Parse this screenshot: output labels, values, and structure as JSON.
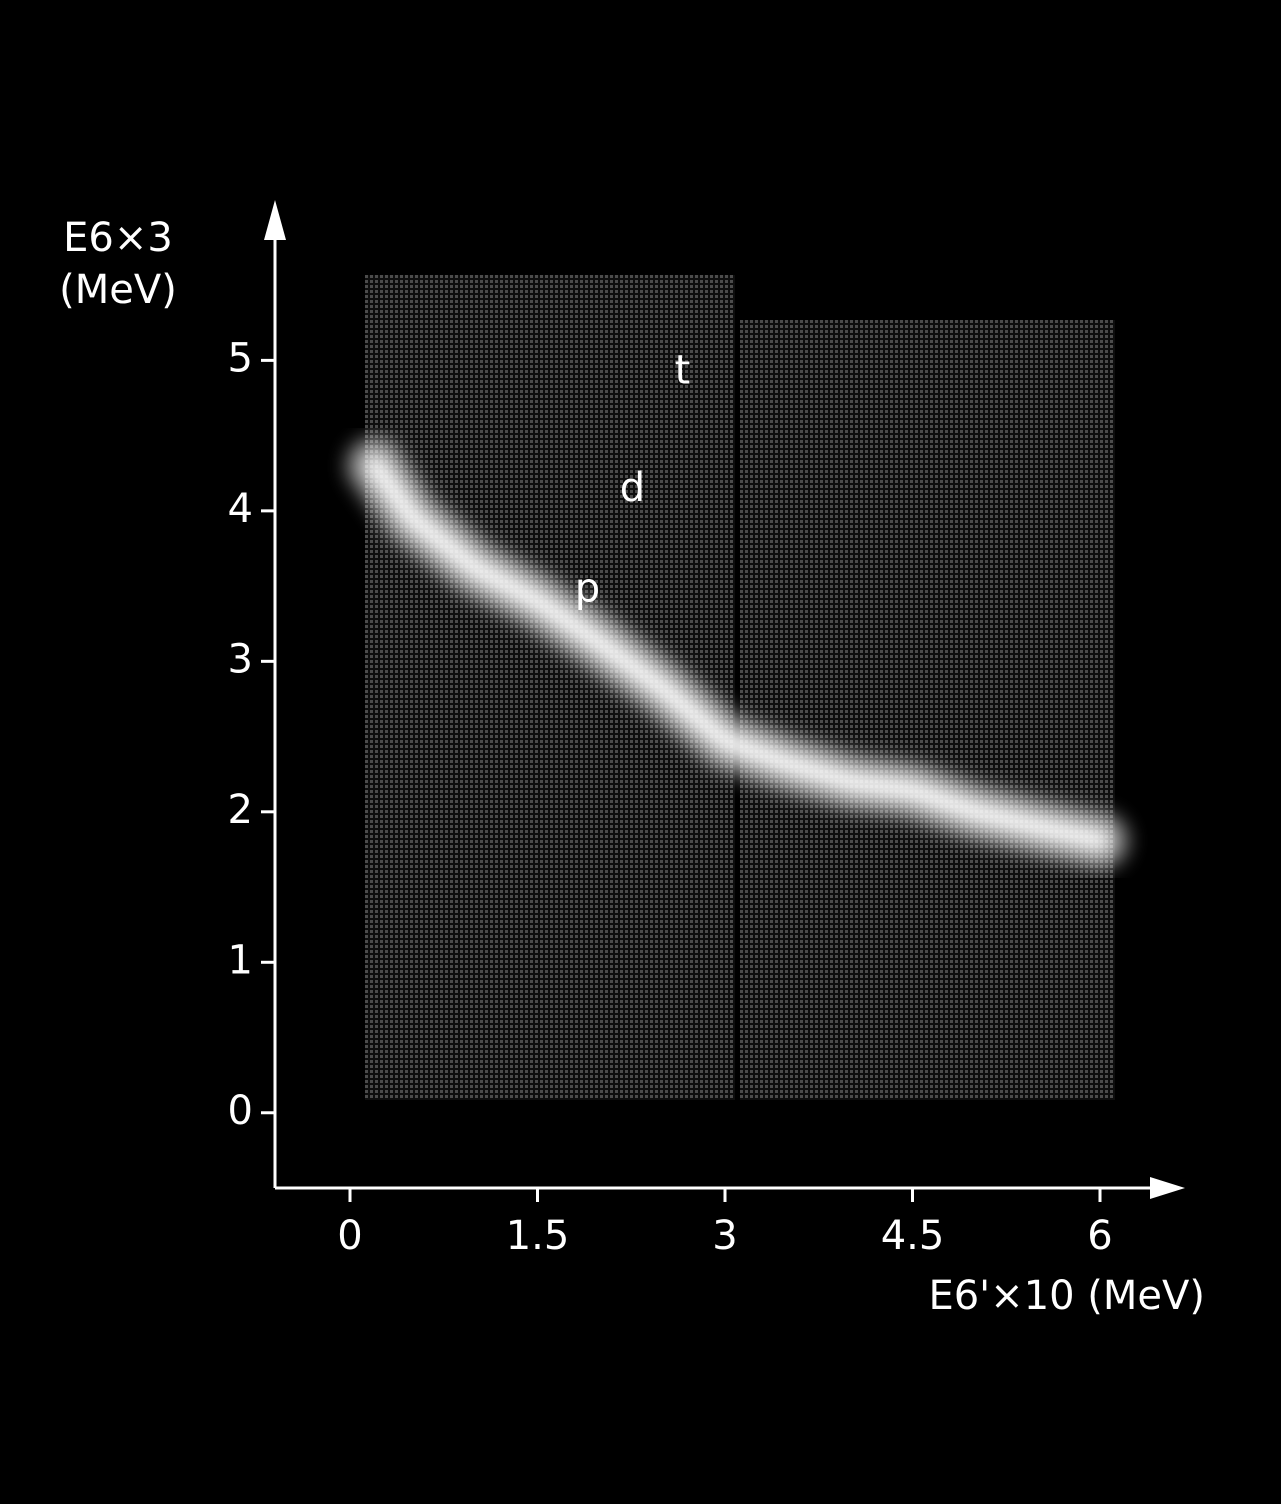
{
  "chart_data": {
    "type": "density",
    "ylabel": [
      "E6×3",
      "(MeV)"
    ],
    "xlabel": "E6'×10 (MeV)",
    "x": [
      0.2,
      0.5,
      1.0,
      1.5,
      2.0,
      2.5,
      3.0,
      3.5,
      4.0,
      4.5,
      5.0,
      5.5,
      6.0
    ],
    "y": [
      4.3,
      3.95,
      3.62,
      3.4,
      3.12,
      2.82,
      2.47,
      2.32,
      2.2,
      2.14,
      2.0,
      1.9,
      1.81
    ],
    "color": "#ffffff",
    "annotations": [
      {
        "text": "t",
        "x": 2.66,
        "y": 4.92
      },
      {
        "text": "d",
        "x": 2.26,
        "y": 4.14
      },
      {
        "text": "p",
        "x": 1.9,
        "y": 3.47
      }
    ],
    "xlim": [
      -0.6,
      6.4
    ],
    "ylim": [
      -0.5,
      5.8
    ],
    "xticks": [
      0,
      1.5,
      3,
      4.5,
      6
    ],
    "yticks": [
      0,
      1,
      2,
      3,
      4,
      5
    ]
  }
}
